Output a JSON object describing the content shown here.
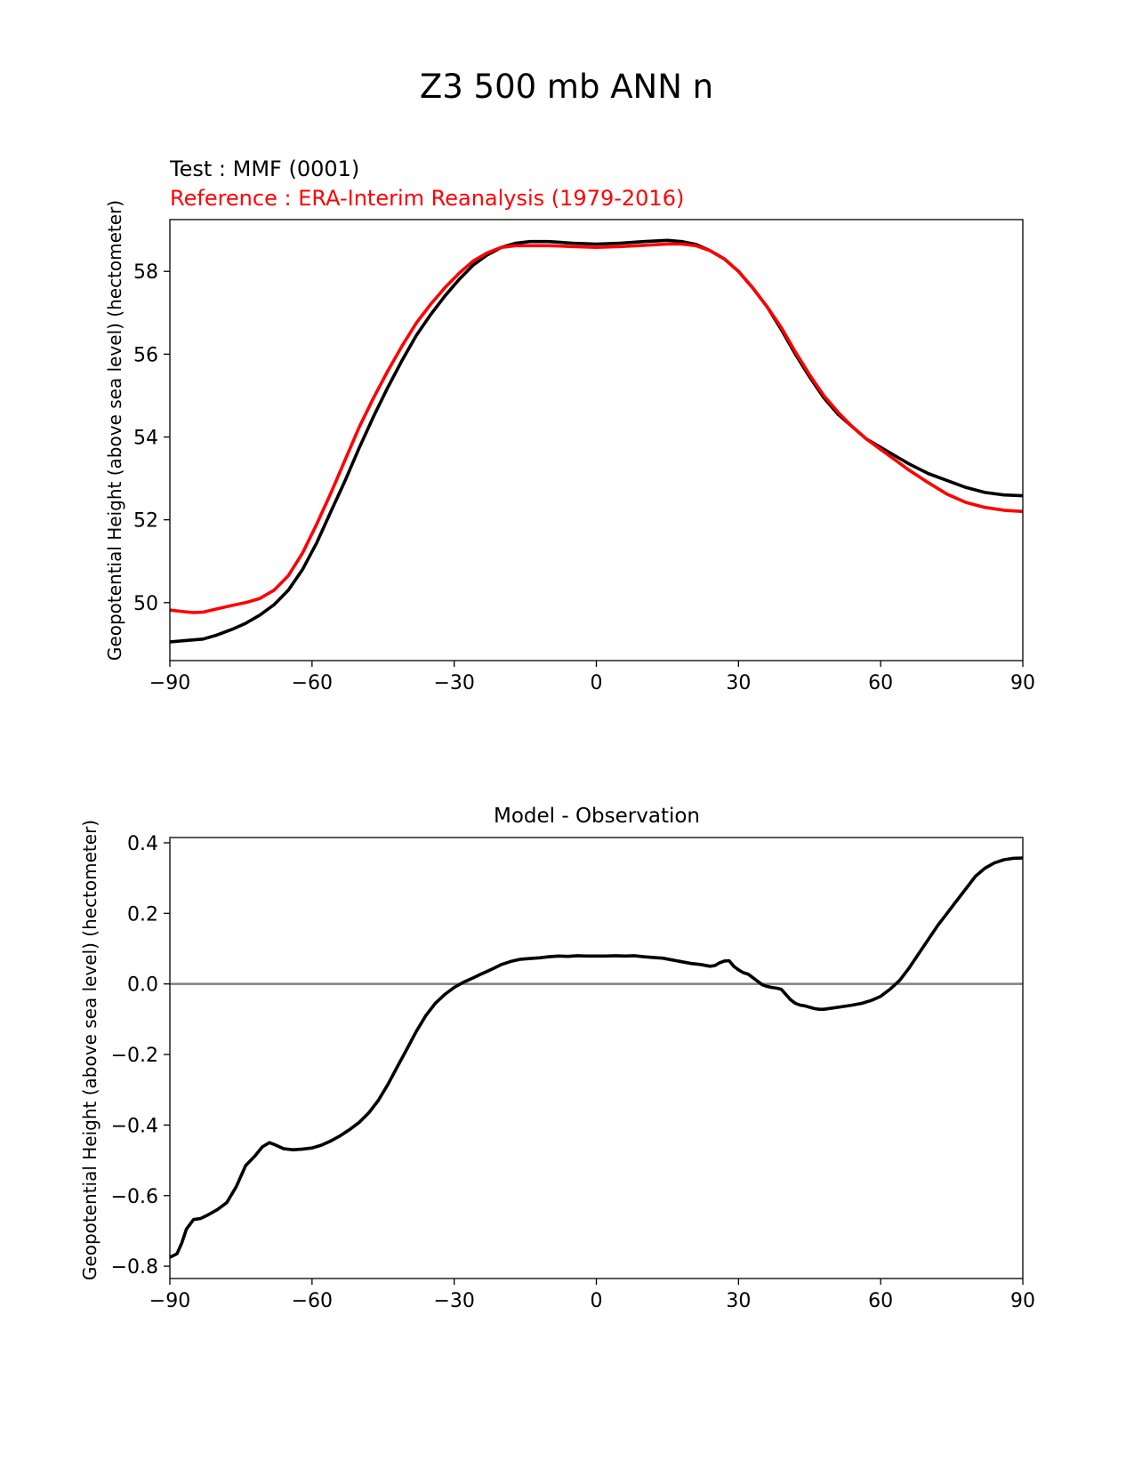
{
  "figure_title": "Z3 500 mb ANN n",
  "colors": {
    "test": "#000000",
    "reference": "#ff0000",
    "zero_line": "#808080",
    "axes": "#000000"
  },
  "chart_data": [
    {
      "type": "line",
      "test_label": "Test : MMF (0001)",
      "reference_label": "Reference : ERA-Interim Reanalysis (1979-2016)",
      "title": "",
      "xlabel": "",
      "ylabel": "Geopotential Height (above sea level) (hectometer)",
      "xlim": [
        -90,
        90
      ],
      "ylim": [
        48.6,
        59.25
      ],
      "xticks": [
        -90,
        -60,
        -30,
        0,
        30,
        60,
        90
      ],
      "xtick_labels": [
        "−90",
        "−60",
        "−30",
        "0",
        "30",
        "60",
        "90"
      ],
      "yticks": [
        50,
        52,
        54,
        56,
        58
      ],
      "ytick_labels": [
        "50",
        "52",
        "54",
        "56",
        "58"
      ],
      "series": [
        {
          "role": "test",
          "color": "#000000",
          "x": [
            -90,
            -87,
            -85,
            -83,
            -80,
            -77,
            -74,
            -71,
            -68,
            -65,
            -62,
            -59,
            -56,
            -53,
            -50,
            -47,
            -44,
            -41,
            -38,
            -35,
            -32,
            -29,
            -26,
            -23,
            -20,
            -17,
            -14,
            -10,
            -5,
            0,
            5,
            10,
            15,
            18,
            21,
            24,
            27,
            30,
            33,
            36,
            39,
            42,
            45,
            48,
            51,
            54,
            57,
            60,
            63,
            66,
            70,
            74,
            78,
            82,
            86,
            90
          ],
          "y": [
            49.05,
            49.08,
            49.1,
            49.12,
            49.22,
            49.35,
            49.5,
            49.7,
            49.95,
            50.3,
            50.8,
            51.45,
            52.2,
            52.95,
            53.75,
            54.5,
            55.2,
            55.85,
            56.45,
            56.95,
            57.4,
            57.8,
            58.15,
            58.4,
            58.58,
            58.68,
            58.72,
            58.72,
            58.68,
            58.66,
            58.68,
            58.72,
            58.75,
            58.72,
            58.65,
            58.5,
            58.3,
            58.0,
            57.6,
            57.15,
            56.6,
            56.0,
            55.45,
            54.95,
            54.55,
            54.25,
            53.95,
            53.75,
            53.55,
            53.35,
            53.12,
            52.95,
            52.78,
            52.66,
            52.6,
            52.58
          ]
        },
        {
          "role": "reference",
          "color": "#ff0000",
          "x": [
            -90,
            -87,
            -85,
            -83,
            -80,
            -77,
            -74,
            -71,
            -68,
            -65,
            -62,
            -59,
            -56,
            -53,
            -50,
            -47,
            -44,
            -41,
            -38,
            -35,
            -32,
            -29,
            -26,
            -23,
            -20,
            -17,
            -14,
            -10,
            -5,
            0,
            5,
            10,
            15,
            18,
            21,
            24,
            27,
            30,
            33,
            36,
            39,
            42,
            45,
            48,
            51,
            54,
            57,
            60,
            63,
            66,
            70,
            74,
            78,
            82,
            86,
            90
          ],
          "y": [
            49.82,
            49.78,
            49.76,
            49.77,
            49.85,
            49.93,
            50.0,
            50.1,
            50.3,
            50.65,
            51.2,
            51.9,
            52.65,
            53.45,
            54.25,
            54.95,
            55.6,
            56.2,
            56.75,
            57.2,
            57.6,
            57.95,
            58.25,
            58.45,
            58.58,
            58.62,
            58.62,
            58.62,
            58.6,
            58.58,
            58.6,
            58.63,
            58.66,
            58.66,
            58.62,
            58.5,
            58.3,
            58.0,
            57.6,
            57.15,
            56.65,
            56.05,
            55.5,
            55.0,
            54.6,
            54.25,
            53.95,
            53.7,
            53.45,
            53.2,
            52.9,
            52.62,
            52.42,
            52.3,
            52.23,
            52.2
          ]
        }
      ]
    },
    {
      "type": "line",
      "title": "Model - Observation",
      "xlabel": "",
      "ylabel": "Geopotential Height (above sea level) (hectometer)",
      "xlim": [
        -90,
        90
      ],
      "ylim": [
        -0.835,
        0.415
      ],
      "xticks": [
        -90,
        -60,
        -30,
        0,
        30,
        60,
        90
      ],
      "xtick_labels": [
        "−90",
        "−60",
        "−30",
        "0",
        "30",
        "60",
        "90"
      ],
      "yticks": [
        0.4,
        0.2,
        0.0,
        -0.2,
        -0.4,
        -0.6,
        -0.8
      ],
      "ytick_labels": [
        "0.4",
        "0.2",
        "0.0",
        "−0.2",
        "−0.4",
        "−0.6",
        "−0.8"
      ],
      "zero_line": 0,
      "series": [
        {
          "role": "difference",
          "color": "#000000",
          "x": [
            -90,
            -88.5,
            -87.5,
            -86.5,
            -85,
            -83.5,
            -82,
            -80,
            -78,
            -76,
            -74,
            -72,
            -70.5,
            -69,
            -68,
            -66,
            -64,
            -62,
            -60,
            -58,
            -56,
            -54,
            -52,
            -50,
            -48,
            -46,
            -44,
            -42,
            -40,
            -38,
            -36,
            -34,
            -32,
            -30,
            -28,
            -26,
            -24,
            -22,
            -20,
            -18,
            -16,
            -14,
            -12,
            -10,
            -8,
            -6,
            -4,
            -2,
            0,
            2,
            4,
            6,
            8,
            10,
            12,
            14,
            16,
            18,
            20,
            22,
            24,
            25,
            26,
            27,
            28,
            29,
            30,
            31,
            32,
            33,
            34,
            35,
            36,
            37,
            38,
            39,
            40,
            41,
            42,
            43,
            44,
            45,
            46,
            47,
            48,
            50,
            52,
            54,
            56,
            58,
            60,
            62,
            64,
            66,
            68,
            70,
            72,
            74,
            76,
            78,
            80,
            82,
            84,
            86,
            88,
            90
          ],
          "y": [
            -0.775,
            -0.765,
            -0.735,
            -0.695,
            -0.668,
            -0.665,
            -0.655,
            -0.64,
            -0.62,
            -0.575,
            -0.515,
            -0.487,
            -0.462,
            -0.45,
            -0.455,
            -0.467,
            -0.47,
            -0.468,
            -0.465,
            -0.457,
            -0.445,
            -0.43,
            -0.412,
            -0.392,
            -0.365,
            -0.33,
            -0.285,
            -0.235,
            -0.185,
            -0.135,
            -0.09,
            -0.055,
            -0.03,
            -0.01,
            0.005,
            0.017,
            0.03,
            0.042,
            0.055,
            0.064,
            0.07,
            0.072,
            0.074,
            0.077,
            0.079,
            0.078,
            0.08,
            0.079,
            0.079,
            0.079,
            0.08,
            0.079,
            0.08,
            0.077,
            0.075,
            0.073,
            0.068,
            0.063,
            0.058,
            0.055,
            0.05,
            0.052,
            0.06,
            0.065,
            0.066,
            0.05,
            0.04,
            0.032,
            0.028,
            0.018,
            0.008,
            -0.002,
            -0.007,
            -0.01,
            -0.012,
            -0.015,
            -0.03,
            -0.045,
            -0.055,
            -0.06,
            -0.062,
            -0.066,
            -0.07,
            -0.072,
            -0.072,
            -0.068,
            -0.064,
            -0.06,
            -0.055,
            -0.047,
            -0.035,
            -0.015,
            0.01,
            0.045,
            0.085,
            0.125,
            0.165,
            0.2,
            0.235,
            0.27,
            0.305,
            0.328,
            0.343,
            0.352,
            0.356,
            0.357
          ]
        }
      ]
    }
  ]
}
